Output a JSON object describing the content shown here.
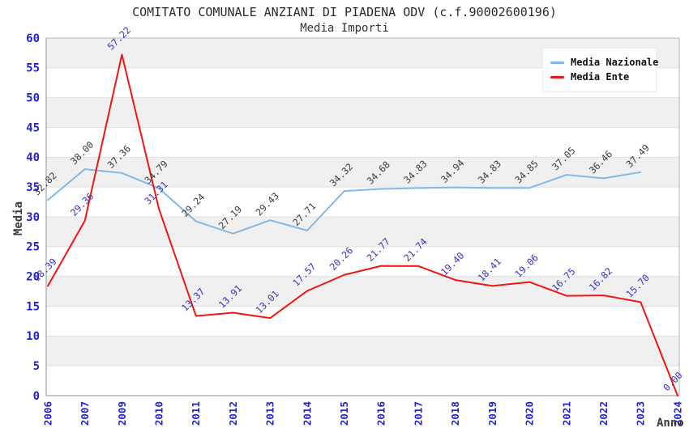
{
  "chart_data": {
    "type": "line",
    "title": "COMITATO COMUNALE ANZIANI DI PIADENA ODV (c.f.90002600196)",
    "subtitle": "Media Importi",
    "xlabel": "Anno",
    "ylabel": "Media",
    "ylim": [
      0,
      60
    ],
    "ytick_step": 5,
    "grid_bands": true,
    "legend_position": "top-right",
    "categories": [
      "2006",
      "2007",
      "2009",
      "2010",
      "2011",
      "2012",
      "2013",
      "2014",
      "2015",
      "2016",
      "2017",
      "2018",
      "2019",
      "2020",
      "2021",
      "2022",
      "2023",
      "2024"
    ],
    "series": [
      {
        "name": "Media Nazionale",
        "color": "#85b7e6",
        "label_color": "#3a3a3a",
        "values": [
          32.82,
          38.0,
          37.36,
          34.79,
          29.24,
          27.19,
          29.43,
          27.71,
          34.32,
          34.68,
          34.83,
          34.94,
          34.83,
          34.85,
          37.05,
          36.46,
          37.49,
          null
        ]
      },
      {
        "name": "Media Ente",
        "color": "#f01414",
        "label_color": "#3333bb",
        "values": [
          18.39,
          29.36,
          57.22,
          31.31,
          13.37,
          13.91,
          13.01,
          17.57,
          20.26,
          21.77,
          21.74,
          19.4,
          18.41,
          19.06,
          16.75,
          16.82,
          15.7,
          0.0
        ]
      }
    ],
    "colors": {
      "tick": "#2222cc",
      "band": "#f0f0f0",
      "grid": "#e0e0e0",
      "frame": "#b5b5b5",
      "axis": "#8f8f8f",
      "plot_bg": "#ffffff"
    }
  }
}
